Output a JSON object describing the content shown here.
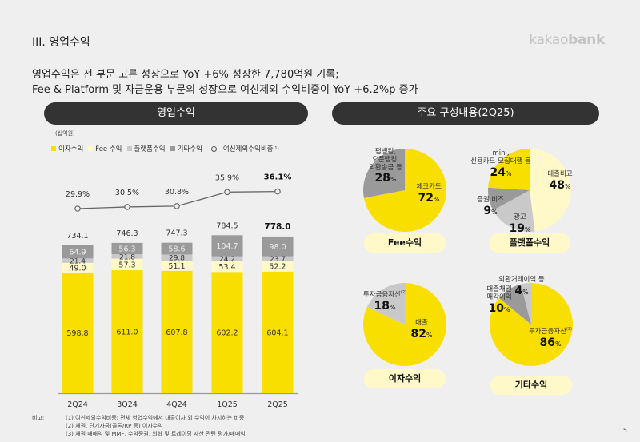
{
  "header": {
    "section_title": "III. 영업수익",
    "logo_light": "kakao",
    "logo_bold": "bank"
  },
  "headline": {
    "line1": "영업수익은 전 부문 고른 성장으로 YoY +6% 성장한 7,780억원 기록;",
    "line2": "Fee & Platform 및 자금운용 부문의 성장으로 여신제외 수익비중이 YoY +6.2%p 증가"
  },
  "left_panel": {
    "title": "영업수익",
    "unit": "(십억원)",
    "legend": [
      {
        "label": "이자수익",
        "color": "#f9df00"
      },
      {
        "label": "Fee 수익",
        "color": "#fff8c8"
      },
      {
        "label": "플랫폼수익",
        "color": "#c9c9c9"
      },
      {
        "label": "기타수익",
        "color": "#9a9a9a"
      },
      {
        "label": "여신제외수익비중",
        "sup": "(1)"
      }
    ]
  },
  "chart_data": [
    {
      "type": "bar",
      "stacked": true,
      "title": "영업수익",
      "unit": "(십억원)",
      "categories": [
        "2Q24",
        "3Q24",
        "4Q24",
        "1Q25",
        "2Q25"
      ],
      "series": [
        {
          "name": "이자수익",
          "color": "#f9df00",
          "values": [
            598.8,
            611.0,
            607.8,
            602.2,
            604.1
          ]
        },
        {
          "name": "Fee 수익",
          "color": "#fff8c8",
          "values": [
            49.0,
            57.3,
            51.1,
            53.4,
            52.2
          ]
        },
        {
          "name": "플랫폼수익",
          "color": "#c9c9c9",
          "values": [
            21.4,
            21.8,
            29.8,
            24.2,
            23.7
          ]
        },
        {
          "name": "기타수익",
          "color": "#9a9a9a",
          "values": [
            64.9,
            56.3,
            58.6,
            104.7,
            98.0
          ]
        }
      ],
      "totals": [
        "734.1",
        "746.3",
        "747.3",
        "784.5",
        "778.0"
      ],
      "line_series": {
        "name": "여신제외수익비중",
        "values": [
          29.9,
          30.5,
          30.8,
          35.9,
          36.1
        ],
        "labels": [
          "29.9%",
          "30.5%",
          "30.8%",
          "35.9%",
          "36.1%"
        ]
      },
      "highlight_last": true,
      "xlabel": "",
      "ylabel": "",
      "grid": false,
      "legend": "top"
    },
    {
      "type": "pie",
      "title": "Fee수익",
      "slices": [
        {
          "label": "체크카드",
          "value": 72,
          "color": "#f9df00"
        },
        {
          "label": "펌뱅킹, 오픈뱅킹, 외환송금 등",
          "value": 28,
          "color": "#9a9a9a"
        }
      ]
    },
    {
      "type": "pie",
      "title": "플랫폼수익",
      "slices": [
        {
          "label": "대출비교",
          "value": 48,
          "color": "#fff8c8"
        },
        {
          "label": "광고",
          "value": 19,
          "color": "#c9c9c9"
        },
        {
          "label": "증권 비즈",
          "value": 9,
          "color": "#9a9a9a"
        },
        {
          "label": "mini, 신용카드 모집대행 등",
          "value": 24,
          "color": "#f9df00"
        }
      ]
    },
    {
      "type": "pie",
      "title": "이자수익",
      "slices": [
        {
          "label": "대출",
          "value": 82,
          "color": "#f9df00"
        },
        {
          "label": "투자금융자산(2)",
          "value": 18,
          "color": "#c9c9c9"
        }
      ]
    },
    {
      "type": "pie",
      "title": "기타수익",
      "slices": [
        {
          "label": "투자금융자산(3)",
          "value": 86,
          "color": "#f9df00"
        },
        {
          "label": "대출채권 매각이익",
          "value": 10,
          "color": "#9a9a9a"
        },
        {
          "label": "외환거래이익 등",
          "value": 4,
          "color": "#c9c9c9"
        }
      ]
    }
  ],
  "right_panel": {
    "title": "주요 구성내용(2Q25)",
    "pies": [
      {
        "name": "Fee수익",
        "labels": [
          {
            "text": [
              "체크카드"
            ],
            "pct": "72"
          },
          {
            "text": [
              "펌뱅킹,",
              "오픈뱅킹,",
              "외환송금 등"
            ],
            "pct": "28"
          }
        ]
      },
      {
        "name": "플랫폼수익",
        "labels": [
          {
            "text": [
              "대출비교"
            ],
            "pct": "48"
          },
          {
            "text": [
              "광고"
            ],
            "pct": "19"
          },
          {
            "text": [
              "증권 비즈"
            ],
            "pct": "9"
          },
          {
            "text": [
              "mini,",
              "신용카드 모집대행 등"
            ],
            "pct": "24"
          }
        ]
      },
      {
        "name": "이자수익",
        "labels": [
          {
            "text": [
              "대출"
            ],
            "pct": "82"
          },
          {
            "text": [
              "투자금융자산"
            ],
            "sup": "(2)",
            "pct": "18"
          }
        ]
      },
      {
        "name": "기타수익",
        "labels": [
          {
            "text": [
              "투자금융자산"
            ],
            "sup": "(3)",
            "pct": "86"
          },
          {
            "text": [
              "대출채권",
              "매각이익"
            ],
            "pct": "10"
          },
          {
            "text": [
              "외환거래이익 등"
            ],
            "pct": "4"
          }
        ]
      }
    ]
  },
  "notes": {
    "label": "비고:",
    "lines": [
      "(1) 여신제외수익비중: 전체 영업수익에서 대출이자 외 수익이 차지하는 비중",
      "(2) 채권, 단기자금(콜론/RP 등) 이자수익",
      "(3) 채권 매매익 및 MMF, 수익증권, 외화 및 트레이딩 자산 관련 평가/매매익"
    ]
  },
  "page_number": "5"
}
